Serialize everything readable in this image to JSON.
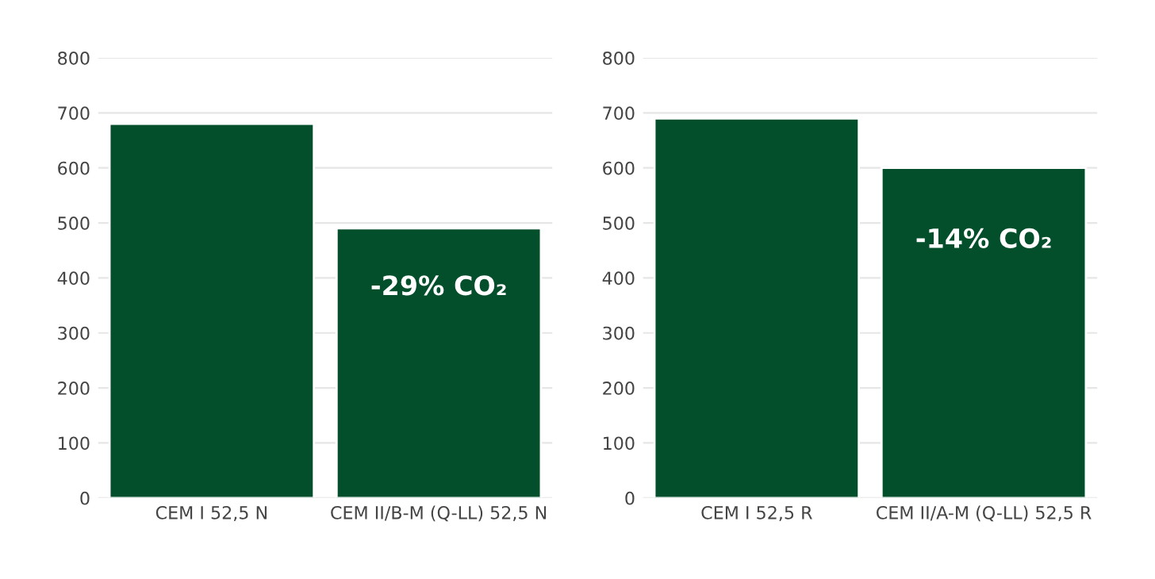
{
  "chart_data": [
    {
      "type": "bar",
      "categories": [
        "CEM I 52,5 N",
        "CEM II/B-M (Q-LL) 52,5 N"
      ],
      "values": [
        680,
        490
      ],
      "color": "#034f2c",
      "ylim": [
        0,
        800
      ],
      "yticks": [
        0,
        100,
        200,
        300,
        400,
        500,
        600,
        700,
        800
      ],
      "grid": "y",
      "annotations": [
        "-29% CO₂"
      ]
    },
    {
      "type": "bar",
      "categories": [
        "CEM I 52,5 R",
        "CEM II/A-M (Q-LL) 52,5 R"
      ],
      "values": [
        690,
        600
      ],
      "color": "#034f2c",
      "ylim": [
        0,
        800
      ],
      "yticks": [
        0,
        100,
        200,
        300,
        400,
        500,
        600,
        700,
        800
      ],
      "grid": "y",
      "annotations": [
        "-14% CO₂"
      ]
    }
  ]
}
